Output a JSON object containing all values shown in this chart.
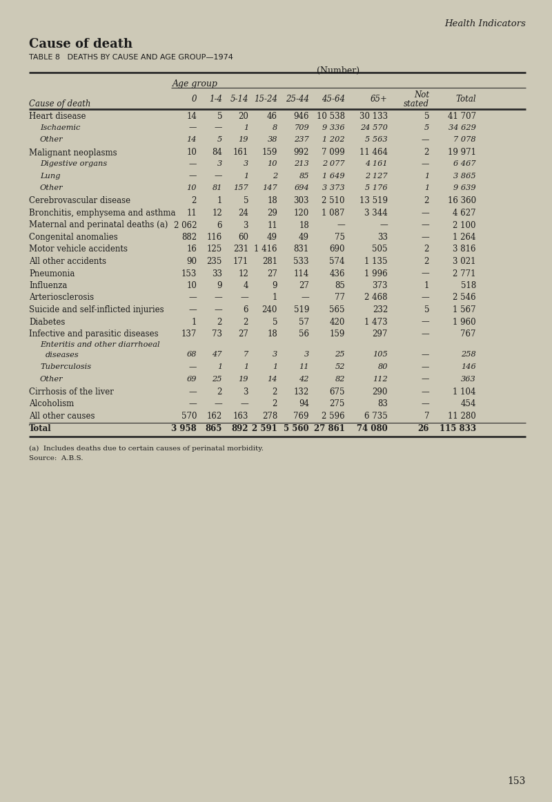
{
  "page_header": "Health Indicators",
  "section_title": "Cause of death",
  "table_title": "TABLE 8   DEATHS BY CAUSE AND AGE GROUP—1974",
  "number_label": "(Number)",
  "age_group_label": "Age group",
  "col_header_cause": "Cause of death",
  "col_headers": [
    "0",
    "1-4",
    "5-14",
    "15-24",
    "25-44",
    "45-64",
    "65+",
    "Not\nstated",
    "Total"
  ],
  "footnote_a": "(a)  Includes deaths due to certain causes of perinatal morbidity.",
  "footnote_source": "Source:  A.B.S.",
  "page_number": "153",
  "rows": [
    {
      "label": "Heart disease",
      "label2": null,
      "indent": 0,
      "bold": true,
      "italic": false,
      "vals": [
        "14",
        "5",
        "20",
        "46",
        "946",
        "10 538",
        "30 133",
        "5",
        "41 707"
      ]
    },
    {
      "label": "Ischaemic",
      "label2": null,
      "indent": 1,
      "bold": false,
      "italic": true,
      "vals": [
        "—",
        "—",
        "1",
        "8",
        "709",
        "9 336",
        "24 570",
        "5",
        "34 629"
      ]
    },
    {
      "label": "Other",
      "label2": null,
      "indent": 1,
      "bold": false,
      "italic": true,
      "vals": [
        "14",
        "5",
        "19",
        "38",
        "237",
        "1 202",
        "5 563",
        "—",
        "7 078"
      ]
    },
    {
      "label": "Malignant neoplasms",
      "label2": null,
      "indent": 0,
      "bold": true,
      "italic": false,
      "vals": [
        "10",
        "84",
        "161",
        "159",
        "992",
        "7 099",
        "11 464",
        "2",
        "19 971"
      ]
    },
    {
      "label": "Digestive organs",
      "label2": null,
      "indent": 1,
      "bold": false,
      "italic": true,
      "vals": [
        "—",
        "3",
        "3",
        "10",
        "213",
        "2 077",
        "4 161",
        "—",
        "6 467"
      ]
    },
    {
      "label": "Lung",
      "label2": null,
      "indent": 1,
      "bold": false,
      "italic": true,
      "vals": [
        "—",
        "—",
        "1",
        "2",
        "85",
        "1 649",
        "2 127",
        "1",
        "3 865"
      ]
    },
    {
      "label": "Other",
      "label2": null,
      "indent": 1,
      "bold": false,
      "italic": true,
      "vals": [
        "10",
        "81",
        "157",
        "147",
        "694",
        "3 373",
        "5 176",
        "1",
        "9 639"
      ]
    },
    {
      "label": "Cerebrovascular disease",
      "label2": null,
      "indent": 0,
      "bold": true,
      "italic": false,
      "vals": [
        "2",
        "1",
        "5",
        "18",
        "303",
        "2 510",
        "13 519",
        "2",
        "16 360"
      ]
    },
    {
      "label": "Bronchitis, emphysema and asthma",
      "label2": null,
      "indent": 0,
      "bold": true,
      "italic": false,
      "vals": [
        "11",
        "12",
        "24",
        "29",
        "120",
        "1 087",
        "3 344",
        "—",
        "4 627"
      ]
    },
    {
      "label": "Maternal and perinatal deaths (a)",
      "label2": null,
      "indent": 0,
      "bold": true,
      "italic": false,
      "vals": [
        "2 062",
        "6",
        "3",
        "11",
        "18",
        "—",
        "—",
        "—",
        "2 100"
      ]
    },
    {
      "label": "Congenital anomalies",
      "label2": null,
      "indent": 0,
      "bold": true,
      "italic": false,
      "vals": [
        "882",
        "116",
        "60",
        "49",
        "49",
        "75",
        "33",
        "—",
        "1 264"
      ]
    },
    {
      "label": "Motor vehicle accidents",
      "label2": null,
      "indent": 0,
      "bold": true,
      "italic": false,
      "vals": [
        "16",
        "125",
        "231",
        "1 416",
        "831",
        "690",
        "505",
        "2",
        "3 816"
      ]
    },
    {
      "label": "All other accidents",
      "label2": null,
      "indent": 0,
      "bold": true,
      "italic": false,
      "vals": [
        "90",
        "235",
        "171",
        "281",
        "533",
        "574",
        "1 135",
        "2",
        "3 021"
      ]
    },
    {
      "label": "Pneumonia",
      "label2": null,
      "indent": 0,
      "bold": true,
      "italic": false,
      "vals": [
        "153",
        "33",
        "12",
        "27",
        "114",
        "436",
        "1 996",
        "—",
        "2 771"
      ]
    },
    {
      "label": "Influenza",
      "label2": null,
      "indent": 0,
      "bold": true,
      "italic": false,
      "vals": [
        "10",
        "9",
        "4",
        "9",
        "27",
        "85",
        "373",
        "1",
        "518"
      ]
    },
    {
      "label": "Arteriosclerosis",
      "label2": null,
      "indent": 0,
      "bold": true,
      "italic": false,
      "vals": [
        "—",
        "—",
        "—",
        "1",
        "—",
        "77",
        "2 468",
        "—",
        "2 546"
      ]
    },
    {
      "label": "Suicide and self-inflicted injuries",
      "label2": null,
      "indent": 0,
      "bold": true,
      "italic": false,
      "vals": [
        "—",
        "—",
        "6",
        "240",
        "519",
        "565",
        "232",
        "5",
        "1 567"
      ]
    },
    {
      "label": "Diabetes",
      "label2": null,
      "indent": 0,
      "bold": true,
      "italic": false,
      "vals": [
        "1",
        "2",
        "2",
        "5",
        "57",
        "420",
        "1 473",
        "—",
        "1 960"
      ]
    },
    {
      "label": "Infective and parasitic diseases",
      "label2": null,
      "indent": 0,
      "bold": true,
      "italic": false,
      "vals": [
        "137",
        "73",
        "27",
        "18",
        "56",
        "159",
        "297",
        "—",
        "767"
      ]
    },
    {
      "label": "Enteritis and other diarrhoeal",
      "label2": "   diseases",
      "indent": 1,
      "bold": false,
      "italic": true,
      "vals": [
        "68",
        "47",
        "7",
        "3",
        "3",
        "25",
        "105",
        "—",
        "258"
      ]
    },
    {
      "label": "Tuberculosis",
      "label2": null,
      "indent": 1,
      "bold": false,
      "italic": true,
      "vals": [
        "—",
        "1",
        "1",
        "1",
        "11",
        "52",
        "80",
        "—",
        "146"
      ]
    },
    {
      "label": "Other",
      "label2": null,
      "indent": 1,
      "bold": false,
      "italic": true,
      "vals": [
        "69",
        "25",
        "19",
        "14",
        "42",
        "82",
        "112",
        "—",
        "363"
      ]
    },
    {
      "label": "Cirrhosis of the liver",
      "label2": null,
      "indent": 0,
      "bold": true,
      "italic": false,
      "vals": [
        "—",
        "2",
        "3",
        "2",
        "132",
        "675",
        "290",
        "—",
        "1 104"
      ]
    },
    {
      "label": "Alcoholism",
      "label2": null,
      "indent": 0,
      "bold": true,
      "italic": false,
      "vals": [
        "—",
        "—",
        "—",
        "2",
        "94",
        "275",
        "83",
        "—",
        "454"
      ]
    },
    {
      "label": "All other causes",
      "label2": null,
      "indent": 0,
      "bold": true,
      "italic": false,
      "vals": [
        "570",
        "162",
        "163",
        "278",
        "769",
        "2 596",
        "6 735",
        "7",
        "11 280"
      ]
    },
    {
      "label": "Total",
      "label2": null,
      "indent": 0,
      "bold": true,
      "italic": false,
      "is_total": true,
      "vals": [
        "3 958",
        "865",
        "892",
        "2 591",
        "5 560",
        "27 861",
        "74 080",
        "26",
        "115 833"
      ]
    }
  ],
  "bg_color": "#cdc9b7",
  "text_color": "#1a1a1a",
  "line_color": "#2a2a2a"
}
